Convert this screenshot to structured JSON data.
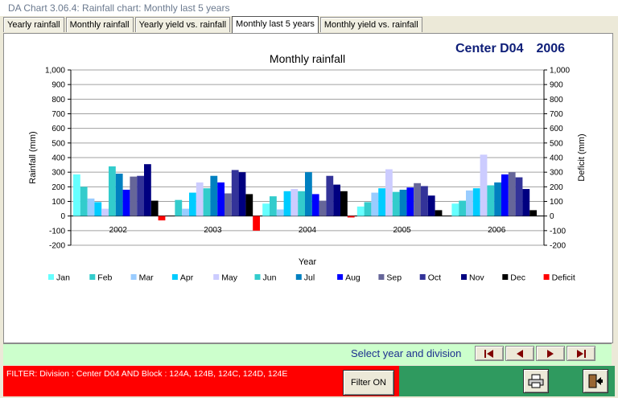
{
  "window": {
    "title": "DA Chart 3.06.4: Rainfall chart: Monthly last 5 years"
  },
  "tabs": [
    {
      "label": "Yearly rainfall",
      "active": false
    },
    {
      "label": "Monthly rainfall",
      "active": false
    },
    {
      "label": "Yearly yield vs. rainfall",
      "active": false
    },
    {
      "label": "Monthly last 5 years",
      "active": true
    },
    {
      "label": "Monthly yield vs. rainfall",
      "active": false
    }
  ],
  "header": {
    "center": "Center D04",
    "year": "2006"
  },
  "chart_data": {
    "type": "bar",
    "title": "Monthly rainfall",
    "xlabel": "Year",
    "ylabel": "Rainfall (mm)",
    "y2label": "Deficit (mm)",
    "ylim": [
      -200,
      1000
    ],
    "yticks": [
      "-200",
      "-100",
      "0",
      "100",
      "200",
      "300",
      "400",
      "500",
      "600",
      "700",
      "800",
      "900",
      "1,000"
    ],
    "grid": true,
    "legend_position": "bottom",
    "categories": [
      "2002",
      "2003",
      "2004",
      "2005",
      "2006"
    ],
    "series": [
      {
        "name": "Jan",
        "color": "#66ffff",
        "values": [
          285,
          0,
          85,
          65,
          85
        ]
      },
      {
        "name": "Feb",
        "color": "#33cccc",
        "values": [
          200,
          110,
          135,
          95,
          105
        ]
      },
      {
        "name": "Mar",
        "color": "#99ccff",
        "values": [
          120,
          50,
          45,
          160,
          175
        ]
      },
      {
        "name": "Apr",
        "color": "#00ccff",
        "values": [
          95,
          160,
          170,
          190,
          190
        ]
      },
      {
        "name": "May",
        "color": "#ccccff",
        "values": [
          50,
          230,
          185,
          320,
          420
        ]
      },
      {
        "name": "Jun",
        "color": "#33cccc",
        "values": [
          340,
          190,
          170,
          165,
          210
        ]
      },
      {
        "name": "Jul",
        "color": "#0080c0",
        "values": [
          290,
          275,
          300,
          180,
          230
        ]
      },
      {
        "name": "Aug",
        "color": "#0000ff",
        "values": [
          180,
          230,
          150,
          195,
          285
        ]
      },
      {
        "name": "Sep",
        "color": "#666699",
        "values": [
          270,
          155,
          105,
          225,
          300
        ]
      },
      {
        "name": "Oct",
        "color": "#333399",
        "values": [
          275,
          315,
          275,
          205,
          265
        ]
      },
      {
        "name": "Nov",
        "color": "#000080",
        "values": [
          355,
          300,
          215,
          140,
          185
        ]
      },
      {
        "name": "Dec",
        "color": "#000000",
        "values": [
          105,
          150,
          170,
          40,
          40
        ]
      },
      {
        "name": "Deficit",
        "color": "#ff0000",
        "values": [
          -30,
          -100,
          -10,
          0,
          0
        ]
      }
    ]
  },
  "navigation": {
    "label": "Select year and division",
    "first_icon": "first-record-icon",
    "prev_icon": "previous-record-icon",
    "next_icon": "next-record-icon",
    "last_icon": "last-record-icon"
  },
  "filter": {
    "text": "FILTER:  Division : Center D04  AND  Block : 124A, 124B, 124C, 124D, 124E",
    "button_label": "Filter ON"
  },
  "actions": {
    "print_icon": "printer-icon",
    "exit_icon": "exit-door-icon"
  }
}
